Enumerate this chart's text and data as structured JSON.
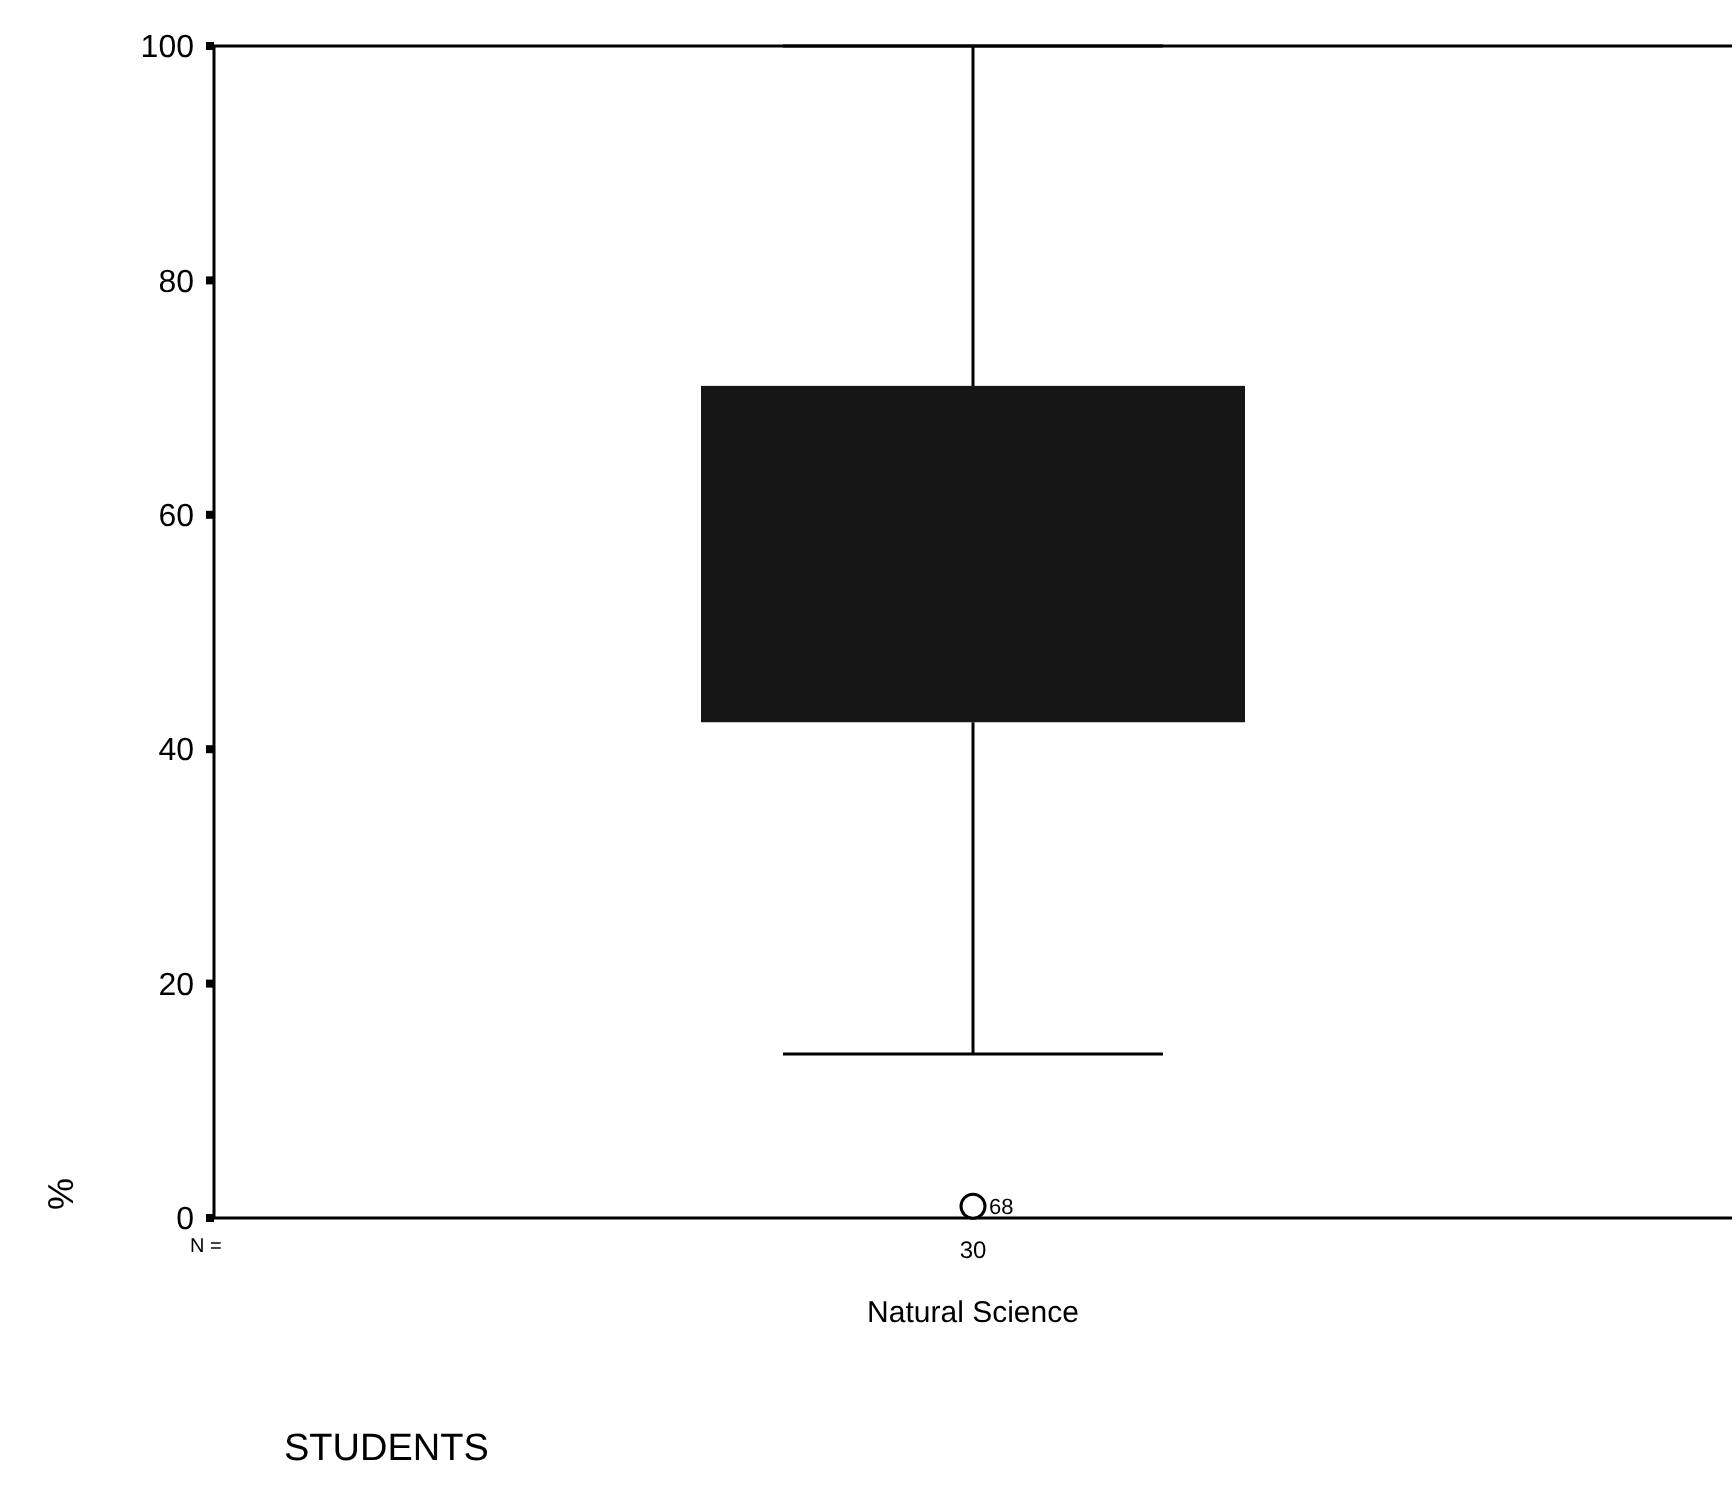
{
  "chart_data": {
    "type": "box",
    "categories": [
      null
    ],
    "xlabel": "Natural Science",
    "ylabel": "%",
    "ylim": [
      0,
      100
    ],
    "yticks": [
      0,
      20,
      40,
      60,
      80,
      100
    ],
    "boxes": [
      {
        "low": 14,
        "q1": 42.3,
        "median": null,
        "q3": 71,
        "high": 100,
        "outliers": [
          1
        ]
      }
    ],
    "color": "#161616",
    "annotations": [
      "N =",
      "30",
      "STUDENTS",
      "68"
    ]
  }
}
